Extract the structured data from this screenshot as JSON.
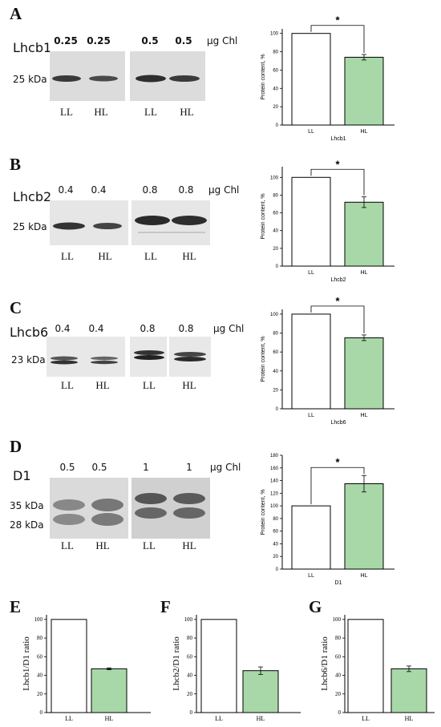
{
  "panels": [
    {
      "letter": "A",
      "protein": "Lhcb1",
      "loads": [
        "0.25",
        "0.25",
        "0.5",
        "0.5"
      ],
      "unit": "µg Chl",
      "markers": [
        "25 kDa"
      ],
      "lanes": [
        "LL",
        "HL",
        "LL",
        "HL"
      ]
    },
    {
      "letter": "B",
      "protein": "Lhcb2",
      "loads": [
        "0.4",
        "0.4",
        "0.8",
        "0.8"
      ],
      "unit": "µg Chl",
      "markers": [
        "25 kDa"
      ],
      "lanes": [
        "LL",
        "HL",
        "LL",
        "HL"
      ]
    },
    {
      "letter": "C",
      "protein": "Lhcb6",
      "loads": [
        "0.4",
        "0.4",
        "0.8",
        "0.8"
      ],
      "unit": "µg Chl",
      "markers": [
        "23 kDa"
      ],
      "lanes": [
        "LL",
        "HL",
        "LL",
        "HL"
      ]
    },
    {
      "letter": "D",
      "protein": "D1",
      "loads": [
        "0.5",
        "0.5",
        "1",
        "1"
      ],
      "unit": "µg Chl",
      "markers": [
        "35 kDa",
        "28 kDa"
      ],
      "lanes": [
        "LL",
        "HL",
        "LL",
        "HL"
      ]
    }
  ],
  "bottom_labels": [
    "E",
    "F",
    "G"
  ],
  "colors": {
    "hl_bar": "#a8d8a8",
    "ll_bar": "#ffffff",
    "axis": "#000000"
  },
  "chart_data": [
    {
      "id": "A",
      "type": "bar",
      "categories": [
        "LL",
        "HL"
      ],
      "values": [
        100,
        74
      ],
      "errors": [
        0,
        3
      ],
      "ylabel": "Protein content, %",
      "xlabel": "Lhcb1",
      "ylim": [
        0,
        105
      ],
      "yticks": [
        0,
        20,
        40,
        60,
        80,
        100
      ],
      "significance": "*"
    },
    {
      "id": "B",
      "type": "bar",
      "categories": [
        "LL",
        "HL"
      ],
      "values": [
        100,
        72
      ],
      "errors": [
        0,
        6
      ],
      "ylabel": "Protein content, %",
      "xlabel": "Lhcb2",
      "ylim": [
        0,
        112
      ],
      "yticks": [
        0,
        20,
        40,
        60,
        80,
        100
      ],
      "significance": "*"
    },
    {
      "id": "C",
      "type": "bar",
      "categories": [
        "LL",
        "HL"
      ],
      "values": [
        100,
        75
      ],
      "errors": [
        0,
        3
      ],
      "ylabel": "Protein content, %",
      "xlabel": "Lhcb6",
      "ylim": [
        0,
        105
      ],
      "yticks": [
        0,
        20,
        40,
        60,
        80,
        100
      ],
      "significance": "*"
    },
    {
      "id": "D",
      "type": "bar",
      "categories": [
        "LL",
        "HL"
      ],
      "values": [
        100,
        135
      ],
      "errors": [
        0,
        13
      ],
      "ylabel": "Protein content, %",
      "xlabel": "D1",
      "ylim": [
        0,
        180
      ],
      "yticks": [
        0,
        20,
        40,
        60,
        80,
        100,
        120,
        140,
        160,
        180
      ],
      "significance": "*"
    },
    {
      "id": "E",
      "type": "bar",
      "categories": [
        "LL",
        "HL"
      ],
      "values": [
        100,
        47
      ],
      "errors": [
        0,
        1
      ],
      "ylabel": "Lhcb1/D1 ratio",
      "xlabel": "",
      "ylim": [
        0,
        105
      ],
      "yticks": [
        0,
        20,
        40,
        60,
        80,
        100
      ]
    },
    {
      "id": "F",
      "type": "bar",
      "categories": [
        "LL",
        "HL"
      ],
      "values": [
        100,
        45
      ],
      "errors": [
        0,
        4
      ],
      "ylabel": "Lhcb2/D1 ratio",
      "xlabel": "",
      "ylim": [
        0,
        105
      ],
      "yticks": [
        0,
        20,
        40,
        60,
        80,
        100
      ]
    },
    {
      "id": "G",
      "type": "bar",
      "categories": [
        "LL",
        "HL"
      ],
      "values": [
        100,
        47
      ],
      "errors": [
        0,
        3
      ],
      "ylabel": "Lhcb6/D1 ratio",
      "xlabel": "",
      "ylim": [
        0,
        105
      ],
      "yticks": [
        0,
        20,
        40,
        60,
        80,
        100
      ]
    }
  ]
}
